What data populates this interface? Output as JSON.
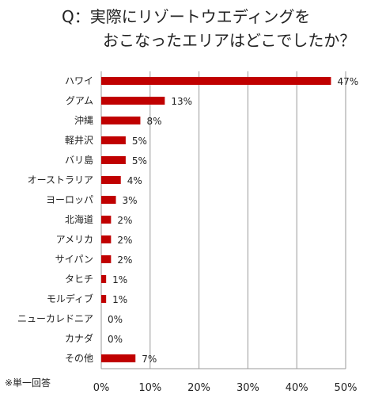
{
  "title": {
    "line1": "Q：実際にリゾートウエディングを",
    "line2": "おこなったエリアはどこでしたか？"
  },
  "footnote": "※単一回答",
  "chart_data": {
    "type": "bar",
    "orientation": "horizontal",
    "categories": [
      "ハワイ",
      "グアム",
      "沖縄",
      "軽井沢",
      "バリ島",
      "オーストラリア",
      "ヨーロッパ",
      "北海道",
      "アメリカ",
      "サイパン",
      "タヒチ",
      "モルディブ",
      "ニューカレドニア",
      "カナダ",
      "その他"
    ],
    "values": [
      47,
      13,
      8,
      5,
      5,
      4,
      3,
      2,
      2,
      2,
      1,
      1,
      0,
      0,
      7
    ],
    "value_labels": [
      "47%",
      "13%",
      "8%",
      "5%",
      "5%",
      "4%",
      "3%",
      "2%",
      "2%",
      "2%",
      "1%",
      "1%",
      "0%",
      "0%",
      "7%"
    ],
    "xlim": [
      0,
      50
    ],
    "xticks": [
      0,
      10,
      20,
      30,
      40,
      50
    ],
    "xtick_labels": [
      "0%",
      "10%",
      "20%",
      "30%",
      "40%",
      "50%"
    ],
    "grid": true,
    "bar_color": "#c00000",
    "grid_color": "#9a9a9a"
  }
}
